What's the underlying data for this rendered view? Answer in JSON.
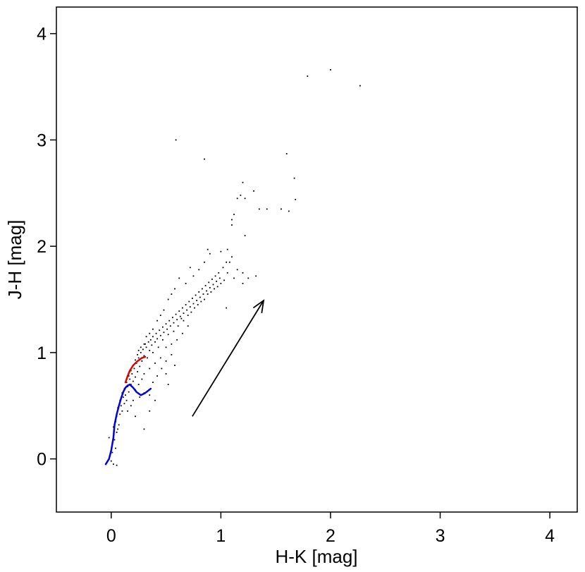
{
  "chart_data": {
    "type": "scatter",
    "xlabel": "H-K [mag]",
    "ylabel": "J-H [mag]",
    "xlim": [
      -0.5,
      4.25
    ],
    "ylim": [
      -0.5,
      4.25
    ],
    "xticks": [
      0,
      1,
      2,
      3,
      4
    ],
    "yticks": [
      0,
      1,
      2,
      3,
      4
    ],
    "xtick_labels": [
      "0",
      "1",
      "2",
      "3",
      "4"
    ],
    "ytick_labels": [
      "0",
      "1",
      "2",
      "3",
      "4"
    ],
    "grid": false,
    "legend": "none",
    "series": [
      {
        "kind": "points",
        "color": "#000000",
        "points": [
          [
            0.0,
            -0.02
          ],
          [
            0.02,
            -0.05
          ],
          [
            0.05,
            -0.06
          ],
          [
            0.01,
            0.06
          ],
          [
            0.04,
            0.1
          ],
          [
            -0.02,
            0.2
          ],
          [
            0.03,
            0.18
          ],
          [
            0.05,
            0.25
          ],
          [
            0.02,
            0.3
          ],
          [
            0.06,
            0.28
          ],
          [
            0.04,
            0.35
          ],
          [
            0.07,
            0.32
          ],
          [
            0.05,
            0.4
          ],
          [
            0.08,
            0.42
          ],
          [
            0.1,
            0.45
          ],
          [
            0.06,
            0.48
          ],
          [
            0.09,
            0.5
          ],
          [
            0.12,
            0.52
          ],
          [
            0.08,
            0.55
          ],
          [
            0.11,
            0.58
          ],
          [
            0.14,
            0.55
          ],
          [
            0.1,
            0.62
          ],
          [
            0.13,
            0.6
          ],
          [
            0.16,
            0.63
          ],
          [
            0.12,
            0.66
          ],
          [
            0.15,
            0.68
          ],
          [
            0.18,
            0.7
          ],
          [
            0.14,
            0.72
          ],
          [
            0.17,
            0.75
          ],
          [
            0.2,
            0.73
          ],
          [
            0.16,
            0.78
          ],
          [
            0.19,
            0.8
          ],
          [
            0.22,
            0.77
          ],
          [
            0.18,
            0.83
          ],
          [
            0.21,
            0.85
          ],
          [
            0.24,
            0.82
          ],
          [
            0.2,
            0.88
          ],
          [
            0.23,
            0.9
          ],
          [
            0.26,
            0.87
          ],
          [
            0.22,
            0.93
          ],
          [
            0.25,
            0.95
          ],
          [
            0.28,
            0.92
          ],
          [
            0.24,
            0.98
          ],
          [
            0.27,
            1.0
          ],
          [
            0.3,
            0.97
          ],
          [
            0.29,
            1.03
          ],
          [
            0.32,
            1.05
          ],
          [
            0.35,
            1.02
          ],
          [
            0.31,
            1.08
          ],
          [
            0.34,
            1.1
          ],
          [
            0.37,
            1.07
          ],
          [
            0.36,
            1.12
          ],
          [
            0.4,
            1.1
          ],
          [
            0.38,
            1.15
          ],
          [
            0.42,
            1.13
          ],
          [
            0.41,
            1.18
          ],
          [
            0.45,
            1.16
          ],
          [
            0.44,
            1.21
          ],
          [
            0.48,
            1.19
          ],
          [
            0.47,
            1.24
          ],
          [
            0.51,
            1.22
          ],
          [
            0.5,
            1.27
          ],
          [
            0.54,
            1.25
          ],
          [
            0.53,
            1.3
          ],
          [
            0.57,
            1.28
          ],
          [
            0.56,
            1.33
          ],
          [
            0.6,
            1.31
          ],
          [
            0.59,
            1.36
          ],
          [
            0.63,
            1.34
          ],
          [
            0.62,
            1.39
          ],
          [
            0.66,
            1.37
          ],
          [
            0.65,
            1.42
          ],
          [
            0.69,
            1.4
          ],
          [
            0.68,
            1.45
          ],
          [
            0.72,
            1.43
          ],
          [
            0.71,
            1.48
          ],
          [
            0.75,
            1.46
          ],
          [
            0.74,
            1.51
          ],
          [
            0.78,
            1.49
          ],
          [
            0.77,
            1.54
          ],
          [
            0.81,
            1.52
          ],
          [
            0.8,
            1.57
          ],
          [
            0.84,
            1.55
          ],
          [
            0.83,
            1.6
          ],
          [
            0.87,
            1.58
          ],
          [
            0.86,
            1.63
          ],
          [
            0.9,
            1.61
          ],
          [
            0.89,
            1.66
          ],
          [
            0.93,
            1.64
          ],
          [
            0.92,
            1.69
          ],
          [
            0.96,
            1.67
          ],
          [
            0.95,
            1.72
          ],
          [
            0.99,
            1.7
          ],
          [
            0.98,
            1.75
          ],
          [
            1.02,
            1.8
          ],
          [
            1.05,
            1.85
          ],
          [
            1.0,
            1.95
          ],
          [
            1.06,
            1.97
          ],
          [
            0.9,
            1.93
          ],
          [
            0.88,
            1.97
          ],
          [
            0.58,
            1.6
          ],
          [
            0.55,
            1.55
          ],
          [
            0.52,
            1.5
          ],
          [
            0.62,
            1.7
          ],
          [
            0.72,
            1.8
          ],
          [
            0.8,
            1.78
          ],
          [
            0.85,
            1.85
          ],
          [
            0.75,
            1.72
          ],
          [
            0.68,
            1.65
          ],
          [
            0.48,
            1.4
          ],
          [
            0.45,
            1.35
          ],
          [
            0.42,
            1.3
          ],
          [
            0.38,
            1.22
          ],
          [
            0.35,
            1.18
          ],
          [
            0.32,
            1.15
          ],
          [
            0.3,
            1.08
          ],
          [
            0.27,
            1.05
          ],
          [
            0.25,
            1.02
          ],
          [
            0.5,
            1.05
          ],
          [
            0.55,
            1.08
          ],
          [
            0.6,
            1.12
          ],
          [
            0.65,
            1.18
          ],
          [
            0.7,
            1.25
          ],
          [
            0.45,
            0.95
          ],
          [
            0.4,
            0.9
          ],
          [
            0.35,
            0.85
          ],
          [
            0.5,
            0.92
          ],
          [
            0.55,
            0.98
          ],
          [
            0.58,
            0.88
          ],
          [
            0.3,
            0.8
          ],
          [
            0.28,
            0.75
          ],
          [
            0.25,
            0.7
          ],
          [
            0.22,
            0.65
          ],
          [
            0.3,
            0.62
          ],
          [
            0.26,
            0.58
          ],
          [
            0.2,
            0.55
          ],
          [
            0.18,
            0.5
          ],
          [
            0.15,
            0.45
          ],
          [
            0.22,
            0.4
          ],
          [
            0.3,
            0.28
          ],
          [
            0.35,
            0.45
          ],
          [
            0.4,
            0.55
          ],
          [
            0.35,
            0.6
          ],
          [
            0.38,
            0.72
          ],
          [
            0.42,
            0.78
          ],
          [
            0.46,
            0.85
          ],
          [
            0.5,
            0.8
          ],
          [
            0.52,
            0.7
          ],
          [
            0.33,
            0.95
          ],
          [
            0.38,
            1.0
          ],
          [
            0.43,
            1.05
          ],
          [
            0.47,
            1.12
          ],
          [
            0.52,
            1.17
          ],
          [
            0.57,
            1.2
          ],
          [
            0.61,
            1.25
          ],
          [
            0.64,
            1.32
          ],
          [
            0.66,
            1.3
          ],
          [
            0.7,
            1.35
          ],
          [
            0.73,
            1.38
          ],
          [
            0.76,
            1.42
          ],
          [
            0.79,
            1.45
          ],
          [
            0.82,
            1.48
          ],
          [
            0.85,
            1.5
          ],
          [
            0.88,
            1.55
          ],
          [
            0.91,
            1.57
          ],
          [
            0.94,
            1.6
          ],
          [
            0.97,
            1.62
          ],
          [
            1.0,
            1.65
          ],
          [
            1.03,
            1.68
          ],
          [
            1.06,
            1.75
          ],
          [
            1.1,
            1.9
          ],
          [
            1.08,
            1.85
          ],
          [
            1.12,
            1.7
          ],
          [
            1.15,
            1.78
          ],
          [
            1.05,
            1.42
          ],
          [
            1.2,
            1.75
          ],
          [
            1.25,
            1.7
          ],
          [
            1.32,
            1.72
          ],
          [
            1.2,
            1.65
          ],
          [
            1.22,
            2.1
          ],
          [
            1.1,
            2.2
          ],
          [
            1.1,
            2.25
          ],
          [
            1.12,
            2.3
          ],
          [
            1.15,
            2.45
          ],
          [
            1.18,
            2.48
          ],
          [
            1.22,
            2.45
          ],
          [
            1.3,
            2.52
          ],
          [
            1.35,
            2.35
          ],
          [
            1.42,
            2.35
          ],
          [
            1.55,
            2.35
          ],
          [
            1.62,
            2.33
          ],
          [
            1.68,
            2.44
          ],
          [
            1.67,
            2.64
          ],
          [
            1.6,
            2.87
          ],
          [
            1.2,
            2.6
          ],
          [
            0.85,
            2.82
          ],
          [
            0.59,
            3.0
          ],
          [
            1.79,
            3.6
          ],
          [
            2.0,
            3.66
          ],
          [
            2.27,
            3.51
          ]
        ]
      },
      {
        "kind": "line",
        "name": "",
        "color": "#e00000",
        "points": [
          [
            0.13,
            0.72
          ],
          [
            0.15,
            0.78
          ],
          [
            0.17,
            0.83
          ],
          [
            0.2,
            0.88
          ],
          [
            0.24,
            0.92
          ],
          [
            0.28,
            0.95
          ],
          [
            0.31,
            0.96
          ]
        ]
      },
      {
        "kind": "line",
        "name": "",
        "color": "#0000e0",
        "points": [
          [
            -0.05,
            -0.05
          ],
          [
            -0.02,
            0.0
          ],
          [
            0.0,
            0.08
          ],
          [
            0.02,
            0.2
          ],
          [
            0.03,
            0.32
          ],
          [
            0.05,
            0.42
          ],
          [
            0.07,
            0.5
          ],
          [
            0.09,
            0.57
          ],
          [
            0.11,
            0.63
          ],
          [
            0.13,
            0.67
          ],
          [
            0.15,
            0.69
          ],
          [
            0.17,
            0.7
          ],
          [
            0.2,
            0.67
          ],
          [
            0.23,
            0.63
          ],
          [
            0.27,
            0.6
          ],
          [
            0.31,
            0.62
          ],
          [
            0.36,
            0.66
          ]
        ]
      }
    ],
    "annotations": [
      {
        "type": "arrow",
        "from": [
          0.74,
          0.4
        ],
        "to": [
          1.39,
          1.49
        ],
        "color": "#000000"
      }
    ]
  }
}
